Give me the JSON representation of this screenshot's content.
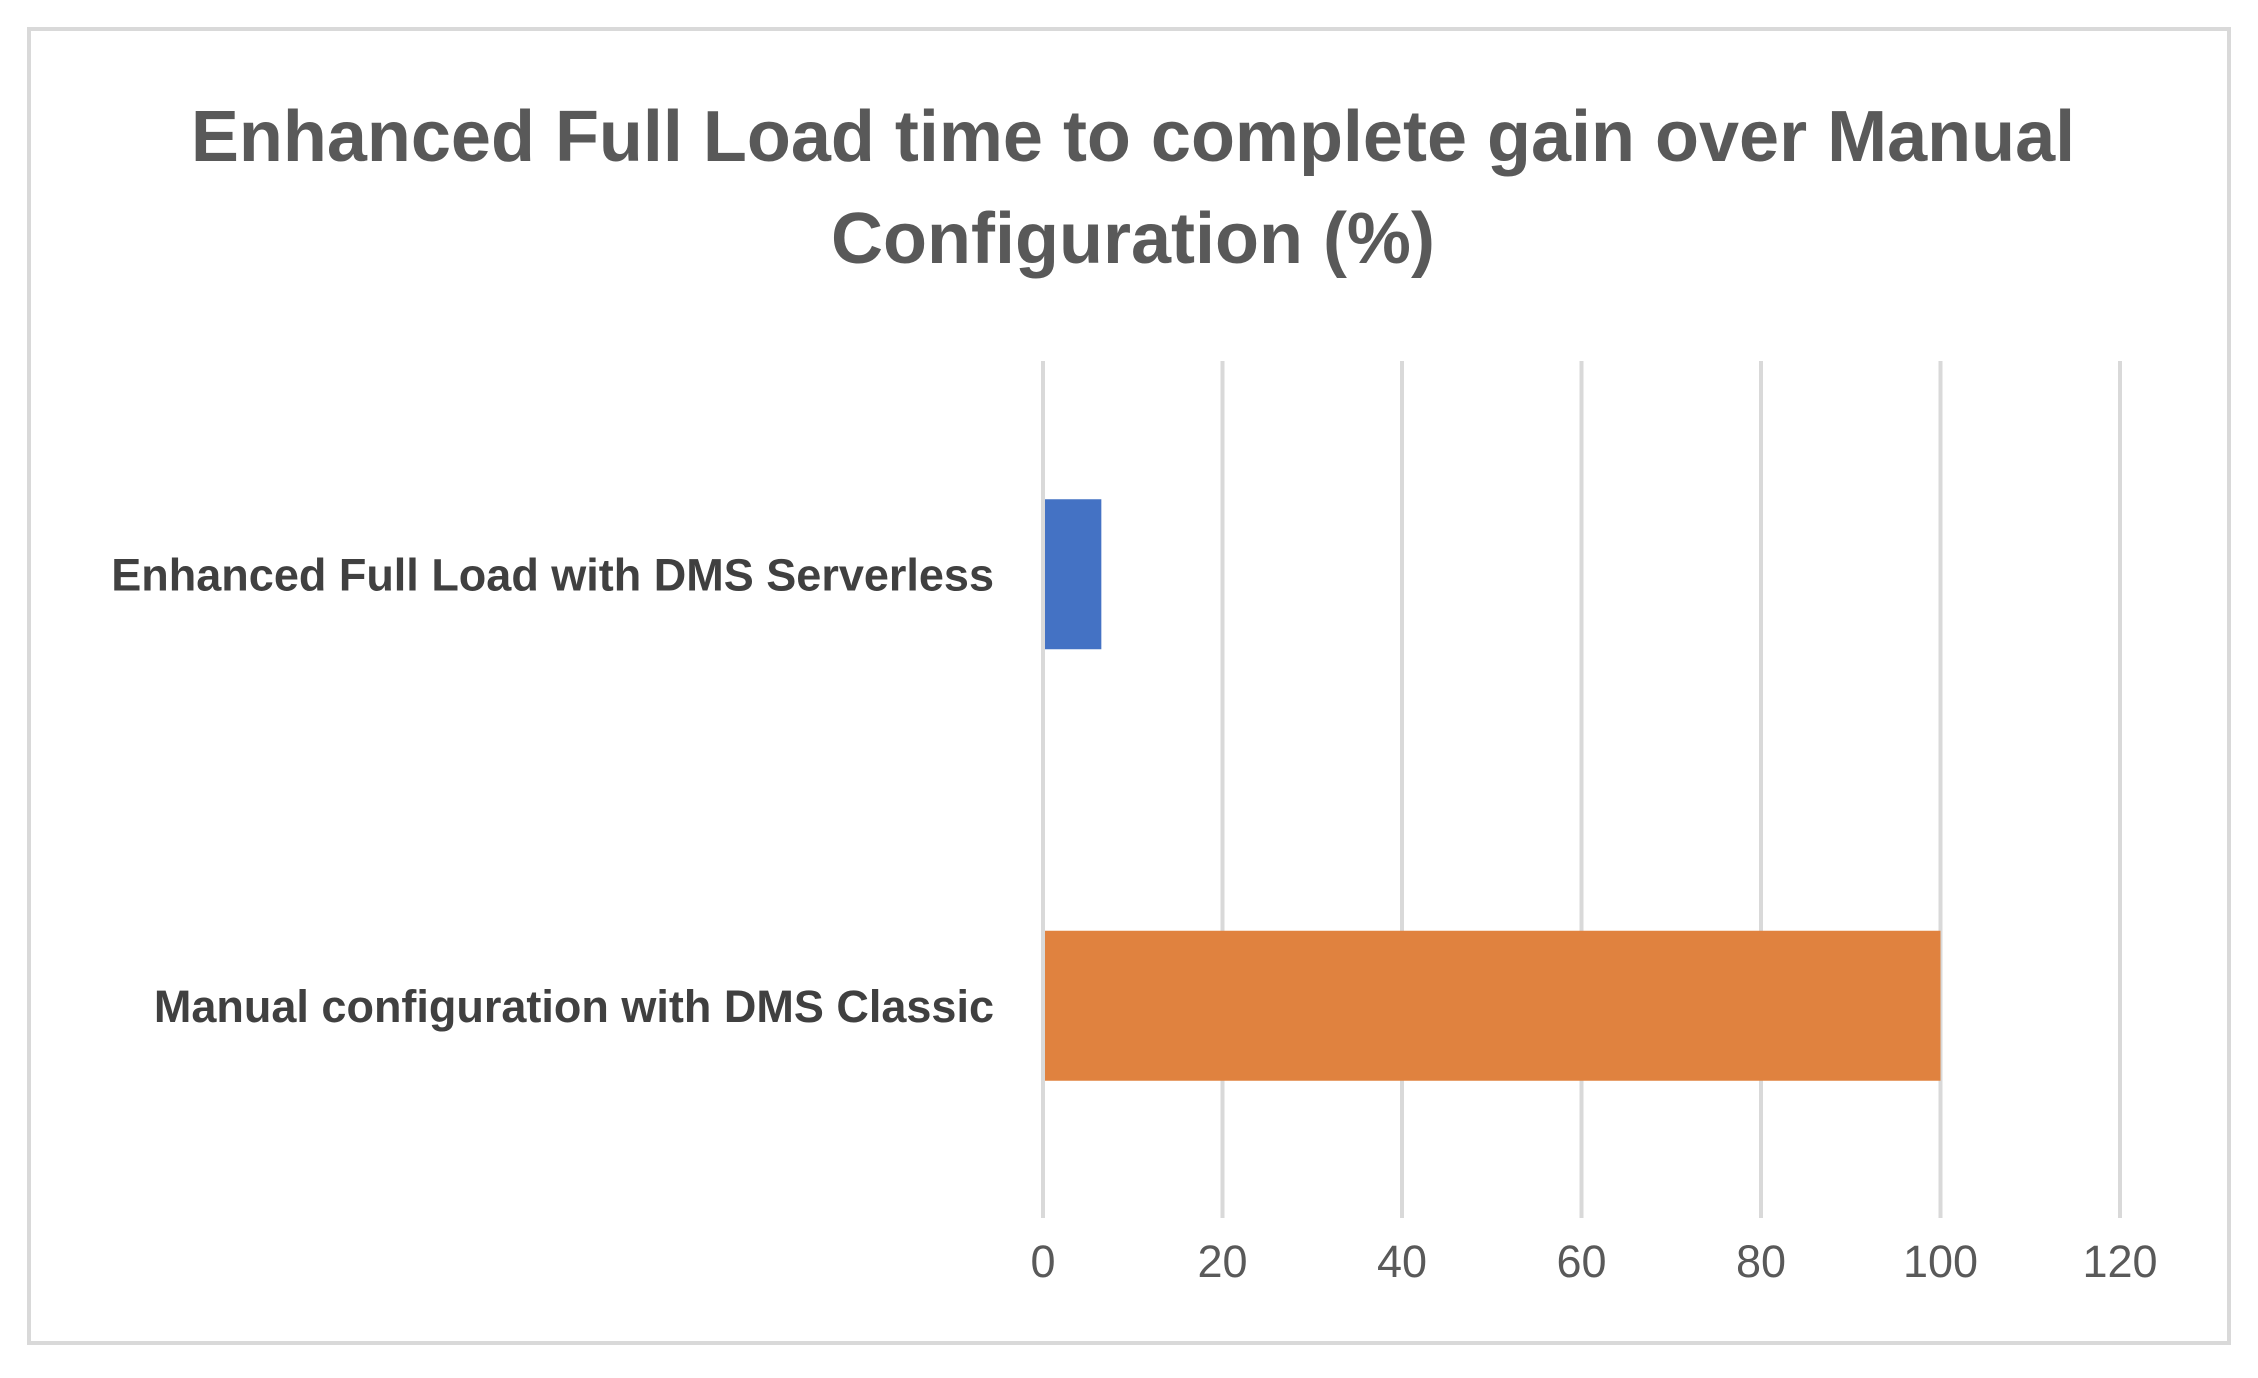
{
  "chart_data": {
    "type": "bar",
    "orientation": "horizontal",
    "title": "Enhanced Full Load time to complete gain over Manual Configuration (%)",
    "categories": [
      "Enhanced Full Load with DMS Serverless",
      "Manual configuration with DMS Classic"
    ],
    "values": [
      6.5,
      100
    ],
    "bar_colors": [
      "#4472c4",
      "#e0823f"
    ],
    "xlim": [
      0,
      120
    ],
    "xticks": [
      "0",
      "20",
      "40",
      "60",
      "80",
      "100",
      "120"
    ],
    "xtick_values": [
      0,
      20,
      40,
      60,
      80,
      100,
      120
    ],
    "grid": true,
    "gridline_color": "#d9d9d9",
    "legend": "none",
    "xlabel": "",
    "ylabel": ""
  }
}
